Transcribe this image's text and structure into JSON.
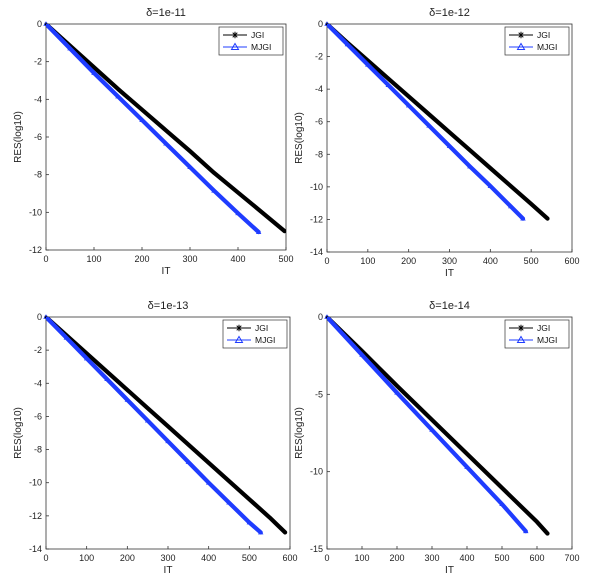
{
  "chart_data": [
    {
      "type": "line",
      "title": "δ=1e-11",
      "xlabel": "IT",
      "ylabel": "RES(log10)",
      "xlim": [
        0,
        500
      ],
      "ylim": [
        -12,
        0
      ],
      "xticks": [
        0,
        100,
        200,
        300,
        400,
        500
      ],
      "yticks": [
        0,
        -2,
        -4,
        -6,
        -8,
        -10,
        -12
      ],
      "legend_position": "top-right",
      "series": [
        {
          "name": "JGI",
          "color": "#000000",
          "marker": "asterisk",
          "x": [
            0,
            50,
            100,
            150,
            200,
            250,
            300,
            350,
            400,
            450,
            497
          ],
          "y": [
            0,
            -1.15,
            -2.3,
            -3.45,
            -4.55,
            -5.65,
            -6.75,
            -7.9,
            -8.95,
            -10.0,
            -11.0
          ]
        },
        {
          "name": "MJGI",
          "color": "#1f3cff",
          "marker": "triangle",
          "x": [
            0,
            50,
            100,
            150,
            200,
            250,
            300,
            350,
            400,
            443
          ],
          "y": [
            0,
            -1.3,
            -2.6,
            -3.85,
            -5.1,
            -6.35,
            -7.6,
            -8.85,
            -10.05,
            -11.05
          ]
        }
      ]
    },
    {
      "type": "line",
      "title": "δ=1e-12",
      "xlabel": "IT",
      "ylabel": "RES(log10)",
      "xlim": [
        0,
        600
      ],
      "ylim": [
        -14,
        0
      ],
      "xticks": [
        0,
        100,
        200,
        300,
        400,
        500,
        600
      ],
      "yticks": [
        0,
        -2,
        -4,
        -6,
        -8,
        -10,
        -12,
        -14
      ],
      "legend_position": "top-right",
      "series": [
        {
          "name": "JGI",
          "color": "#000000",
          "marker": "asterisk",
          "x": [
            0,
            50,
            100,
            150,
            200,
            250,
            300,
            350,
            400,
            450,
            500,
            540
          ],
          "y": [
            0,
            -1.15,
            -2.25,
            -3.35,
            -4.45,
            -5.55,
            -6.65,
            -7.75,
            -8.85,
            -9.95,
            -11.05,
            -11.95
          ]
        },
        {
          "name": "MJGI",
          "color": "#1f3cff",
          "marker": "triangle",
          "x": [
            0,
            50,
            100,
            150,
            200,
            250,
            300,
            350,
            400,
            450,
            480
          ],
          "y": [
            0,
            -1.25,
            -2.5,
            -3.75,
            -5.0,
            -6.25,
            -7.5,
            -8.75,
            -9.95,
            -11.2,
            -11.95
          ]
        }
      ]
    },
    {
      "type": "line",
      "title": "δ=1e-13",
      "xlabel": "IT",
      "ylabel": "RES(log10)",
      "xlim": [
        0,
        600
      ],
      "ylim": [
        -14,
        0
      ],
      "xticks": [
        0,
        100,
        200,
        300,
        400,
        500,
        600
      ],
      "yticks": [
        0,
        -2,
        -4,
        -6,
        -8,
        -10,
        -12,
        -14
      ],
      "legend_position": "top-right",
      "series": [
        {
          "name": "JGI",
          "color": "#000000",
          "marker": "asterisk",
          "x": [
            0,
            50,
            100,
            150,
            200,
            250,
            300,
            350,
            400,
            450,
            500,
            550,
            588
          ],
          "y": [
            0,
            -1.1,
            -2.2,
            -3.3,
            -4.4,
            -5.5,
            -6.6,
            -7.7,
            -8.8,
            -9.9,
            -11.0,
            -12.1,
            -13.0
          ]
        },
        {
          "name": "MJGI",
          "color": "#1f3cff",
          "marker": "triangle",
          "x": [
            0,
            50,
            100,
            150,
            200,
            250,
            300,
            350,
            400,
            450,
            500,
            528
          ],
          "y": [
            0,
            -1.25,
            -2.5,
            -3.75,
            -5.0,
            -6.25,
            -7.5,
            -8.75,
            -10.0,
            -11.2,
            -12.4,
            -13.0
          ]
        }
      ]
    },
    {
      "type": "line",
      "title": "δ=1e-14",
      "xlabel": "IT",
      "ylabel": "RES(log10)",
      "xlim": [
        0,
        700
      ],
      "ylim": [
        -15,
        0
      ],
      "xticks": [
        0,
        100,
        200,
        300,
        400,
        500,
        600,
        700
      ],
      "yticks": [
        0,
        -5,
        -10,
        -15
      ],
      "legend_position": "top-right",
      "series": [
        {
          "name": "JGI",
          "color": "#000000",
          "marker": "asterisk",
          "x": [
            0,
            100,
            200,
            300,
            400,
            500,
            600,
            630
          ],
          "y": [
            0,
            -2.2,
            -4.45,
            -6.65,
            -8.85,
            -11.05,
            -13.25,
            -14.0
          ]
        },
        {
          "name": "MJGI",
          "color": "#1f3cff",
          "marker": "triangle",
          "x": [
            0,
            100,
            200,
            300,
            400,
            500,
            568
          ],
          "y": [
            0,
            -2.45,
            -4.9,
            -7.3,
            -9.7,
            -12.1,
            -13.85
          ]
        }
      ]
    }
  ]
}
